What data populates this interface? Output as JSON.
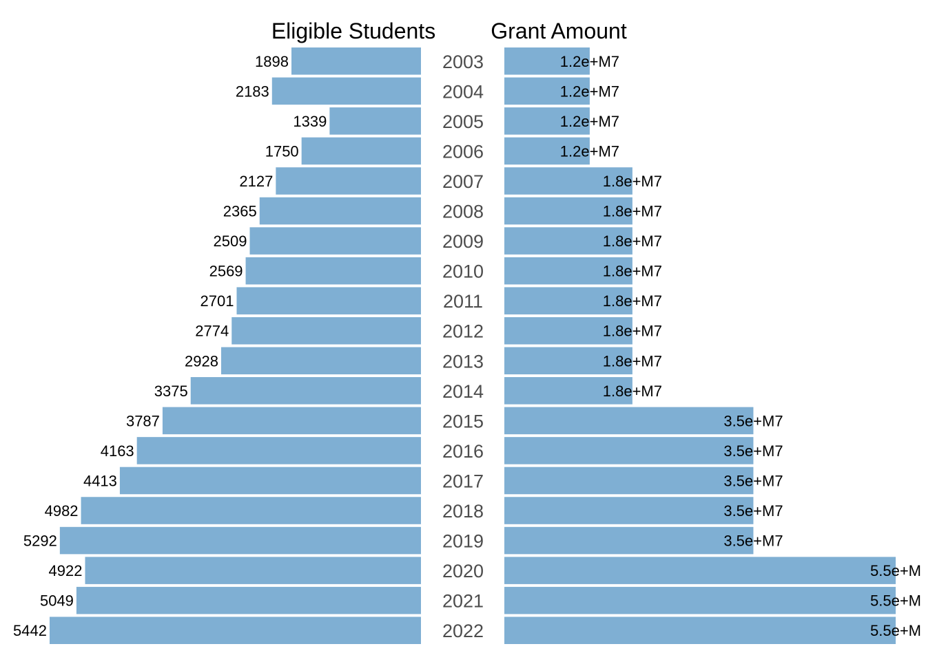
{
  "chart_data": {
    "type": "bar",
    "categories": [
      "2003",
      "2004",
      "2005",
      "2006",
      "2007",
      "2008",
      "2009",
      "2010",
      "2011",
      "2012",
      "2013",
      "2014",
      "2015",
      "2016",
      "2017",
      "2018",
      "2019",
      "2020",
      "2021",
      "2022"
    ],
    "panels": [
      {
        "title": "Eligible Students",
        "direction": "leftward",
        "values": [
          1898,
          2183,
          1339,
          1750,
          2127,
          2365,
          2509,
          2569,
          2701,
          2774,
          2928,
          3375,
          3787,
          4163,
          4413,
          4982,
          5292,
          4922,
          5049,
          5442
        ],
        "value_labels": [
          "1898",
          "2183",
          "1339",
          "1750",
          "2127",
          "2365",
          "2509",
          "2569",
          "2701",
          "2774",
          "2928",
          "3375",
          "3787",
          "4163",
          "4413",
          "4982",
          "5292",
          "4922",
          "5049",
          "5442"
        ]
      },
      {
        "title": "Grant Amount",
        "direction": "rightward",
        "values": [
          12000000,
          12000000,
          12000000,
          12000000,
          18000000,
          18000000,
          18000000,
          18000000,
          18000000,
          18000000,
          18000000,
          18000000,
          35000000,
          35000000,
          35000000,
          35000000,
          35000000,
          55000000,
          55000000,
          55000000
        ],
        "value_labels": [
          "1.2e+M7",
          "1.2e+M7",
          "1.2e+M7",
          "1.2e+M7",
          "1.8e+M7",
          "1.8e+M7",
          "1.8e+M7",
          "1.8e+M7",
          "1.8e+M7",
          "1.8e+M7",
          "1.8e+M7",
          "1.8e+M7",
          "3.5e+M7",
          "3.5e+M7",
          "3.5e+M7",
          "3.5e+M7",
          "3.5e+M7",
          "5.5e+M",
          "5.5e+M",
          "5.5e+M"
        ]
      }
    ],
    "grid": false,
    "legend": "none"
  },
  "colors": {
    "bar": "#7fafd3",
    "value_label": "#000000",
    "category_label": "#4d4d4d",
    "title": "#000000"
  }
}
